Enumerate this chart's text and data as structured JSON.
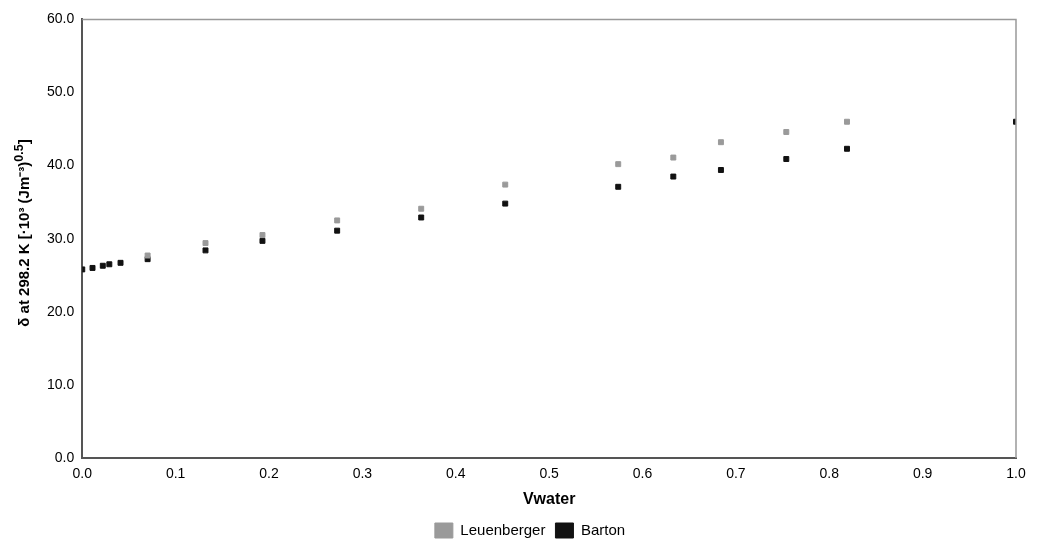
{
  "chart_data": {
    "type": "scatter",
    "xlabel": "Vwater",
    "ylabel": "δ at 298.2 K [·10³ (Jm⁻³)$^{0.5}$]",
    "xlim": [
      0,
      1
    ],
    "ylim": [
      0,
      60
    ],
    "xticks": [
      {
        "value": 0,
        "label": "0.0"
      },
      0.1,
      0.2,
      0.3,
      0.4,
      0.5,
      0.6,
      0.7,
      0.8,
      0.9,
      {
        "value": 1,
        "label": "1.0"
      }
    ],
    "yticks": [
      {
        "value": 0,
        "label": "0.0"
      },
      {
        "value": 10,
        "label": "10.0"
      },
      {
        "value": 20,
        "label": "20.0"
      },
      {
        "value": 30,
        "label": "30.0"
      },
      {
        "value": 40,
        "label": "40.0"
      },
      {
        "value": 50,
        "label": "50.0"
      },
      {
        "value": 60,
        "label": "60.0"
      }
    ],
    "grid": false,
    "legend": "bottom",
    "marker": "square",
    "series": [
      {
        "name": "Leuenberger",
        "color": "#9a9a9a",
        "x": [
          0.07,
          0.132,
          0.193,
          0.273,
          0.363,
          0.453,
          0.574,
          0.633,
          0.684,
          0.754,
          0.819
        ],
        "values": [
          27.7,
          29.4,
          30.5,
          32.5,
          34.1,
          37.4,
          40.2,
          41.1,
          43.2,
          44.6,
          46.0
        ]
      },
      {
        "name": "Barton",
        "color": "#111111",
        "x": [
          0.0,
          0.011,
          0.022,
          0.029,
          0.041,
          0.07,
          0.132,
          0.193,
          0.273,
          0.363,
          0.453,
          0.574,
          0.633,
          0.684,
          0.754,
          0.819,
          1.0
        ],
        "values": [
          25.8,
          26.0,
          26.3,
          26.5,
          26.7,
          27.2,
          28.4,
          29.7,
          31.1,
          32.9,
          34.8,
          37.1,
          38.5,
          39.4,
          40.9,
          42.3,
          46.0
        ]
      }
    ]
  }
}
